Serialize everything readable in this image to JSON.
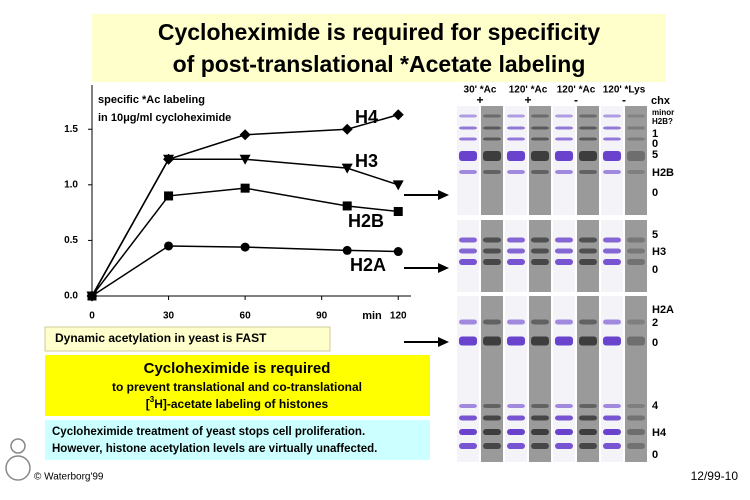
{
  "chart_data": {
    "type": "line",
    "annotations": [
      "specific *Ac labeling",
      "in 10μg/ml cycloheximide"
    ],
    "x_label": "min",
    "xlim": [
      0,
      125
    ],
    "xticks": [
      0,
      30,
      60,
      90,
      120
    ],
    "ylim": [
      0,
      1.7
    ],
    "yticks": [
      {
        "value": 0,
        "label": "0.0"
      },
      0.5,
      {
        "value": 1,
        "label": "1.0"
      },
      1.5
    ],
    "grid": false,
    "series": [
      {
        "name": "H4",
        "color": "#000000",
        "marker": "diamond",
        "x": [
          0,
          30,
          60,
          100,
          120
        ],
        "values": [
          0,
          1.23,
          1.45,
          1.5,
          1.63
        ]
      },
      {
        "name": "H3",
        "color": "#000000",
        "marker": "triangle-down",
        "x": [
          0,
          30,
          60,
          100,
          120
        ],
        "values": [
          0,
          1.23,
          1.23,
          1.15,
          1.0
        ]
      },
      {
        "name": "H2B",
        "color": "#000000",
        "marker": "square",
        "x": [
          0,
          30,
          60,
          100,
          120
        ],
        "values": [
          0,
          0.9,
          0.97,
          0.81,
          0.76
        ]
      },
      {
        "name": "H2A",
        "color": "#000000",
        "marker": "circle",
        "x": [
          0,
          30,
          60,
          100,
          120
        ],
        "values": [
          0,
          0.45,
          0.44,
          0.41,
          0.4
        ]
      }
    ]
  },
  "slide": {
    "title": [
      "Cycloheximide is required for specificity",
      "of post-translational *Acetate labeling"
    ],
    "fast_box": "Dynamic acetylation in yeast is FAST",
    "required_box": {
      "heading": "Cycloheximide is required",
      "line1": "to prevent translational and co-translational",
      "line2_pre": "[",
      "line2_sup": "3",
      "line2_post": "H]-acetate labeling of histones"
    },
    "note_box": [
      "Cycloheximide treatment of yeast stops cell proliferation.",
      "However, histone acetylation levels are virtually unaffected."
    ],
    "copyright": "© Waterborg'99",
    "slide_number": "12/99-10",
    "gel": {
      "columns": [
        {
          "label": "30' *Ac",
          "sign": "+"
        },
        {
          "label": "120' *Ac",
          "sign": "+"
        },
        {
          "label": "120' *Ac",
          "sign": "-"
        },
        {
          "label": "120' *Lys",
          "sign": "-"
        }
      ],
      "chx": "chx",
      "right_labels": [
        "minor",
        "H2B?",
        "1",
        "0",
        "5",
        "H2B",
        "0",
        "5",
        "H3",
        "0",
        "H2A",
        "2",
        "0",
        "4",
        "H4",
        "0"
      ]
    }
  }
}
